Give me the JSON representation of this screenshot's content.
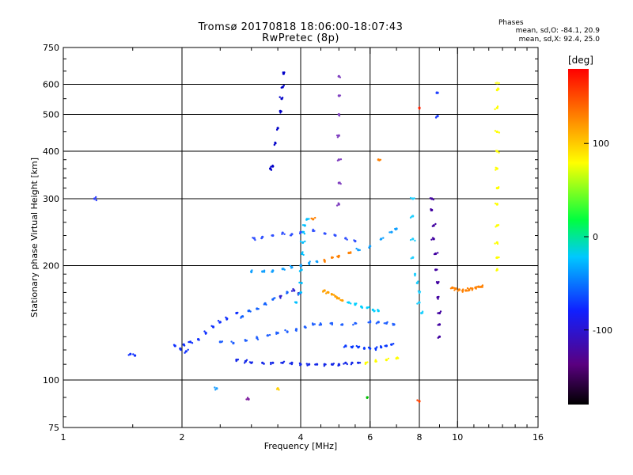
{
  "header": {
    "title_line1": "Tromsø 20170818 18:06:00-18:07:43",
    "title_line2": "RwPretec (8p)",
    "phase_title": "Phases",
    "phase_line1": "mean, sd,O: -84.1, 20.9",
    "phase_line2": "mean, sd,X:  92.4, 25.0"
  },
  "colorbar": {
    "unit_label": "[deg]",
    "ticks": [
      {
        "value": 100,
        "label": "100"
      },
      {
        "value": 0,
        "label": "0"
      },
      {
        "value": -100,
        "label": "-100"
      }
    ],
    "range": [
      -180,
      180
    ],
    "colors": [
      "#000000",
      "#5a0080",
      "#1020ff",
      "#00c8ff",
      "#00ff40",
      "#ffff00",
      "#ff8000",
      "#ff0000"
    ]
  },
  "chart_data": {
    "type": "scatter",
    "xlabel": "Frequency [MHz]",
    "ylabel": "Stationary phase Virtual Height [km]",
    "x_scale": "log",
    "y_scale": "log",
    "xlim": [
      1,
      16
    ],
    "ylim": [
      75,
      750
    ],
    "x_ticks": [
      1,
      2,
      4,
      6,
      8,
      10,
      16
    ],
    "y_ticks": [
      75,
      100,
      200,
      300,
      400,
      500,
      600,
      750
    ],
    "x_gridlines": [
      2,
      4,
      6,
      8,
      10
    ],
    "y_gridlines": [
      100,
      200,
      300,
      400,
      500,
      600
    ],
    "grid": true,
    "legend": "colorbar right",
    "series": [
      {
        "values": [
          [
            1.48,
            117
          ],
          [
            1.52,
            116
          ],
          [
            1.92,
            123
          ],
          [
            1.98,
            121
          ],
          [
            2.02,
            124
          ],
          [
            2.05,
            119
          ],
          [
            2.1,
            126
          ],
          [
            2.2,
            128
          ],
          [
            2.3,
            133
          ],
          [
            2.4,
            138
          ],
          [
            2.5,
            142
          ],
          [
            2.6,
            145
          ],
          [
            2.75,
            150
          ],
          [
            2.85,
            147
          ],
          [
            2.95,
            152
          ],
          [
            3.1,
            154
          ],
          [
            3.25,
            159
          ],
          [
            3.4,
            163
          ],
          [
            3.55,
            166
          ],
          [
            3.7,
            170
          ],
          [
            3.85,
            172
          ],
          [
            3.95,
            169
          ]
        ]
      },
      {
        "values": [
          [
            2.75,
            113
          ],
          [
            2.9,
            112
          ],
          [
            3.0,
            111
          ],
          [
            3.2,
            111
          ],
          [
            3.4,
            111
          ],
          [
            3.6,
            111
          ],
          [
            3.8,
            111
          ],
          [
            4.0,
            110
          ],
          [
            4.2,
            110
          ],
          [
            4.4,
            110
          ],
          [
            4.6,
            110
          ],
          [
            4.8,
            110
          ],
          [
            5.0,
            110
          ],
          [
            5.2,
            111
          ],
          [
            5.4,
            111
          ],
          [
            5.6,
            111
          ],
          [
            5.85,
            111
          ],
          [
            6.2,
            112
          ],
          [
            6.6,
            113
          ],
          [
            7.0,
            114
          ]
        ]
      },
      {
        "values": [
          [
            2.5,
            126
          ],
          [
            2.7,
            125
          ],
          [
            2.9,
            127
          ],
          [
            3.1,
            129
          ],
          [
            3.3,
            131
          ],
          [
            3.5,
            133
          ],
          [
            3.7,
            134
          ],
          [
            3.9,
            136
          ],
          [
            4.1,
            138
          ],
          [
            4.3,
            140
          ],
          [
            4.5,
            140
          ],
          [
            4.8,
            141
          ],
          [
            5.1,
            140
          ],
          [
            5.5,
            141
          ],
          [
            6.0,
            142
          ],
          [
            6.3,
            142
          ],
          [
            6.6,
            141
          ],
          [
            6.9,
            140
          ]
        ]
      },
      {
        "values": [
          [
            3.0,
            193
          ],
          [
            3.2,
            193
          ],
          [
            3.4,
            194
          ],
          [
            3.6,
            196
          ],
          [
            3.8,
            198
          ],
          [
            4.0,
            200
          ],
          [
            4.2,
            203
          ],
          [
            4.4,
            205
          ],
          [
            4.6,
            206
          ],
          [
            4.8,
            210
          ],
          [
            5.0,
            212
          ],
          [
            5.3,
            216
          ],
          [
            5.6,
            220
          ],
          [
            6.0,
            225
          ],
          [
            6.4,
            235
          ],
          [
            6.8,
            245
          ],
          [
            7.0,
            250
          ]
        ]
      },
      {
        "values": [
          [
            3.9,
            160
          ],
          [
            4.0,
            170
          ],
          [
            4.02,
            180
          ],
          [
            4.02,
            195
          ],
          [
            4.03,
            215
          ],
          [
            4.05,
            230
          ],
          [
            4.05,
            245
          ],
          [
            4.1,
            255
          ],
          [
            4.15,
            265
          ]
        ]
      },
      {
        "values": [
          [
            3.05,
            236
          ],
          [
            3.2,
            238
          ],
          [
            3.4,
            240
          ],
          [
            3.6,
            244
          ],
          [
            3.8,
            242
          ],
          [
            4.0,
            245
          ],
          [
            4.3,
            247
          ],
          [
            4.6,
            243
          ],
          [
            4.9,
            240
          ],
          [
            5.2,
            236
          ],
          [
            5.5,
            232
          ]
        ]
      },
      {
        "values": [
          [
            3.35,
            360
          ],
          [
            3.4,
            365
          ],
          [
            3.45,
            420
          ],
          [
            3.5,
            460
          ],
          [
            3.55,
            510
          ],
          [
            3.58,
            550
          ],
          [
            3.6,
            590
          ],
          [
            3.62,
            640
          ]
        ]
      },
      {
        "values": [
          [
            5.0,
            630
          ],
          [
            5.0,
            560
          ],
          [
            5.0,
            500
          ],
          [
            5.0,
            440
          ],
          [
            5.0,
            380
          ],
          [
            5.0,
            330
          ],
          [
            5.0,
            290
          ]
        ]
      },
      {
        "values": [
          [
            7.7,
            300
          ],
          [
            7.7,
            270
          ],
          [
            7.7,
            235
          ],
          [
            7.7,
            210
          ],
          [
            7.8,
            190
          ],
          [
            7.9,
            180
          ],
          [
            8.0,
            170
          ],
          [
            8.0,
            160
          ],
          [
            8.1,
            150
          ]
        ]
      },
      {
        "values": [
          [
            8.6,
            300
          ],
          [
            8.6,
            280
          ],
          [
            8.7,
            255
          ],
          [
            8.7,
            235
          ],
          [
            8.8,
            215
          ],
          [
            8.8,
            195
          ],
          [
            8.9,
            180
          ],
          [
            8.9,
            165
          ],
          [
            9.0,
            150
          ],
          [
            9.0,
            140
          ],
          [
            9.0,
            130
          ]
        ]
      },
      {
        "values": [
          [
            9.7,
            175
          ],
          [
            9.9,
            174
          ],
          [
            10.1,
            173
          ],
          [
            10.3,
            172
          ],
          [
            10.5,
            172
          ],
          [
            10.7,
            173
          ],
          [
            10.9,
            174
          ],
          [
            11.1,
            175
          ],
          [
            11.3,
            176
          ],
          [
            11.5,
            176
          ]
        ]
      },
      {
        "values": [
          [
            12.6,
            580
          ],
          [
            12.6,
            520
          ],
          [
            12.6,
            450
          ],
          [
            12.6,
            400
          ],
          [
            12.6,
            360
          ],
          [
            12.6,
            320
          ],
          [
            12.6,
            290
          ],
          [
            12.6,
            255
          ],
          [
            12.6,
            230
          ],
          [
            12.6,
            210
          ],
          [
            12.6,
            195
          ]
        ]
      },
      {
        "values": [
          [
            4.6,
            172
          ],
          [
            4.7,
            170
          ],
          [
            4.8,
            168
          ],
          [
            4.9,
            166
          ],
          [
            5.0,
            164
          ],
          [
            5.1,
            162
          ],
          [
            5.3,
            160
          ],
          [
            5.5,
            158
          ],
          [
            5.7,
            156
          ],
          [
            5.9,
            155
          ],
          [
            6.1,
            153
          ],
          [
            6.3,
            152
          ]
        ]
      },
      {
        "values": [
          [
            5.2,
            123
          ],
          [
            5.4,
            122
          ],
          [
            5.6,
            122
          ],
          [
            5.8,
            121
          ],
          [
            6.0,
            121
          ],
          [
            6.2,
            121
          ],
          [
            6.4,
            122
          ],
          [
            6.6,
            123
          ],
          [
            6.8,
            124
          ]
        ]
      },
      {
        "values": [
          [
            1.2,
            300
          ],
          [
            2.45,
            95
          ],
          [
            2.95,
            89
          ],
          [
            3.5,
            95
          ],
          [
            5.9,
            90
          ],
          [
            8.0,
            88
          ],
          [
            8.0,
            520
          ],
          [
            8.9,
            570
          ],
          [
            8.9,
            495
          ],
          [
            12.6,
            605
          ],
          [
            6.3,
            380
          ],
          [
            4.3,
            265
          ]
        ]
      }
    ]
  }
}
